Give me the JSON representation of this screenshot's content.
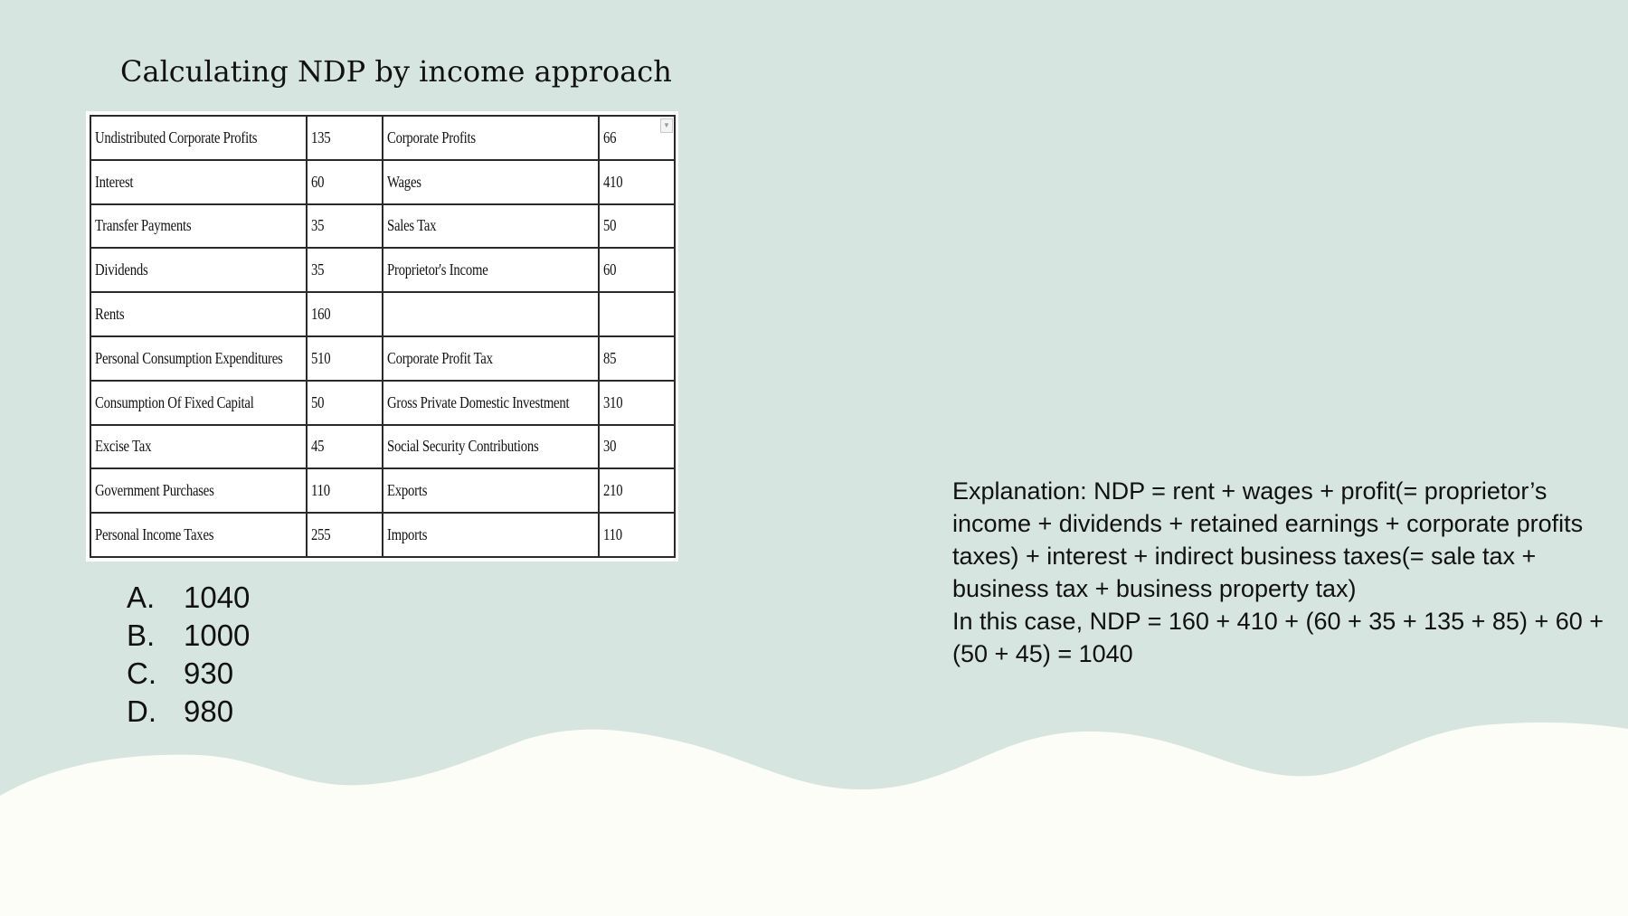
{
  "slide": {
    "title": "Calculating NDP by income approach"
  },
  "table": {
    "rows": [
      {
        "item1": "Undistributed Corporate Profits",
        "value1": "135",
        "item2": "Corporate Profits",
        "value2": "66"
      },
      {
        "item1": "Interest",
        "value1": "60",
        "item2": "Wages",
        "value2": "410"
      },
      {
        "item1": "Transfer Payments",
        "value1": "35",
        "item2": "Sales Tax",
        "value2": "50"
      },
      {
        "item1": "Dividends",
        "value1": "35",
        "item2": "Proprietor's Income",
        "value2": "60"
      },
      {
        "item1": "Rents",
        "value1": "160",
        "item2": "",
        "value2": ""
      },
      {
        "item1": "Personal Consumption Expenditures",
        "value1": "510",
        "item2": "Corporate Profit Tax",
        "value2": "85"
      },
      {
        "item1": "Consumption Of Fixed Capital",
        "value1": "50",
        "item2": "Gross Private Domestic Investment",
        "value2": "310"
      },
      {
        "item1": "Excise Tax",
        "value1": "45",
        "item2": "Social Security Contributions",
        "value2": "30"
      },
      {
        "item1": "Government Purchases",
        "value1": "110",
        "item2": "Exports",
        "value2": "210"
      },
      {
        "item1": "Personal Income Taxes",
        "value1": "255",
        "item2": "Imports",
        "value2": "110"
      }
    ]
  },
  "answers": [
    {
      "letter": "A.",
      "value": "1040"
    },
    {
      "letter": "B.",
      "value": "1000"
    },
    {
      "letter": "C.",
      "value": "930"
    },
    {
      "letter": "D.",
      "value": "980"
    }
  ],
  "explanation": {
    "line1": "Explanation: NDP = rent + wages + profit(= proprietor’s income + dividends + retained earnings + corporate profits taxes)  + interest + indirect business taxes(= sale tax + business tax + business property tax)",
    "line2": "In this case, NDP = 160 + 410 + (60 + 35 + 135 + 85) + 60 + (50 + 45)  = 1040"
  },
  "colors": {
    "background": "#d6e5e0",
    "wave": "#fcfdf6",
    "text": "#111111"
  },
  "icons": {
    "filter": "dropdown-arrow-icon"
  }
}
